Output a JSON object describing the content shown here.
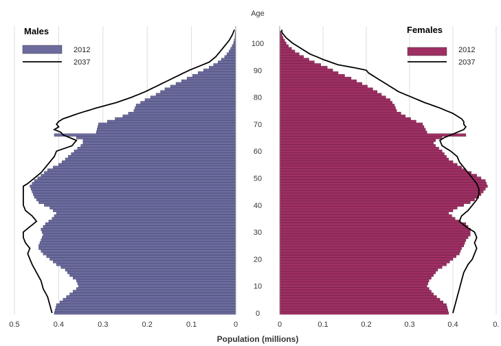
{
  "chart_data": {
    "type": "bar",
    "subtype": "population-pyramid",
    "age_axis_label": "Age",
    "xlabel": "Population (millions)",
    "age_ticks": [
      0,
      10,
      20,
      30,
      40,
      50,
      60,
      70,
      80,
      90,
      100
    ],
    "male_xticks": [
      "0.5",
      "0.4",
      "0.3",
      "0.2",
      "0.1",
      "0"
    ],
    "female_xticks": [
      "0",
      "0.1",
      "0.2",
      "0.3",
      "0.4",
      "0."
    ],
    "xlim": [
      0,
      0.5
    ],
    "grid": true,
    "legend_position": "top-outer",
    "colors": {
      "male_bar": "#6b6b9e",
      "female_bar": "#9e2f63",
      "line_2037": "#000000"
    },
    "panels": [
      {
        "title": "Males",
        "series": [
          {
            "name": "2012",
            "type": "bar",
            "keyframes": [
              [
                0,
                0.41
              ],
              [
                3,
                0.405
              ],
              [
                5,
                0.39
              ],
              [
                7,
                0.375
              ],
              [
                9,
                0.36
              ],
              [
                10,
                0.355
              ],
              [
                12,
                0.36
              ],
              [
                14,
                0.375
              ],
              [
                16,
                0.385
              ],
              [
                18,
                0.405
              ],
              [
                20,
                0.42
              ],
              [
                22,
                0.435
              ],
              [
                24,
                0.445
              ],
              [
                25,
                0.445
              ],
              [
                27,
                0.44
              ],
              [
                29,
                0.435
              ],
              [
                31,
                0.44
              ],
              [
                33,
                0.43
              ],
              [
                35,
                0.415
              ],
              [
                37,
                0.405
              ],
              [
                39,
                0.42
              ],
              [
                41,
                0.445
              ],
              [
                43,
                0.455
              ],
              [
                45,
                0.46
              ],
              [
                47,
                0.465
              ],
              [
                49,
                0.455
              ],
              [
                51,
                0.44
              ],
              [
                53,
                0.425
              ],
              [
                55,
                0.4
              ],
              [
                57,
                0.385
              ],
              [
                60,
                0.365
              ],
              [
                62,
                0.35
              ],
              [
                63,
                0.345
              ],
              [
                64,
                0.345
              ],
              [
                65,
                0.36
              ],
              [
                66,
                0.41
              ],
              [
                67,
                0.315
              ],
              [
                70,
                0.31
              ],
              [
                71,
                0.29
              ],
              [
                73,
                0.255
              ],
              [
                75,
                0.23
              ],
              [
                77,
                0.225
              ],
              [
                79,
                0.205
              ],
              [
                81,
                0.18
              ],
              [
                83,
                0.16
              ],
              [
                85,
                0.135
              ],
              [
                87,
                0.11
              ],
              [
                89,
                0.085
              ],
              [
                91,
                0.06
              ],
              [
                93,
                0.04
              ],
              [
                95,
                0.025
              ],
              [
                97,
                0.015
              ],
              [
                99,
                0.008
              ],
              [
                100,
                0.005
              ],
              [
                102,
                0.002
              ],
              [
                104,
                0.001
              ]
            ]
          },
          {
            "name": "2037",
            "type": "line",
            "keyframes": [
              [
                0,
                0.415
              ],
              [
                3,
                0.42
              ],
              [
                6,
                0.425
              ],
              [
                9,
                0.435
              ],
              [
                12,
                0.44
              ],
              [
                15,
                0.45
              ],
              [
                18,
                0.46
              ],
              [
                20,
                0.465
              ],
              [
                22,
                0.47
              ],
              [
                24,
                0.465
              ],
              [
                26,
                0.475
              ],
              [
                28,
                0.48
              ],
              [
                30,
                0.48
              ],
              [
                32,
                0.465
              ],
              [
                34,
                0.45
              ],
              [
                36,
                0.46
              ],
              [
                38,
                0.475
              ],
              [
                40,
                0.48
              ],
              [
                42,
                0.48
              ],
              [
                44,
                0.48
              ],
              [
                46,
                0.48
              ],
              [
                47,
                0.48
              ],
              [
                48,
                0.47
              ],
              [
                50,
                0.455
              ],
              [
                52,
                0.44
              ],
              [
                54,
                0.43
              ],
              [
                56,
                0.42
              ],
              [
                58,
                0.41
              ],
              [
                60,
                0.405
              ],
              [
                62,
                0.37
              ],
              [
                64,
                0.36
              ],
              [
                65,
                0.375
              ],
              [
                66,
                0.39
              ],
              [
                67,
                0.395
              ],
              [
                68,
                0.41
              ],
              [
                69,
                0.4
              ],
              [
                70,
                0.405
              ],
              [
                71,
                0.4
              ],
              [
                72,
                0.39
              ],
              [
                74,
                0.355
              ],
              [
                76,
                0.315
              ],
              [
                78,
                0.27
              ],
              [
                80,
                0.235
              ],
              [
                82,
                0.205
              ],
              [
                84,
                0.18
              ],
              [
                86,
                0.155
              ],
              [
                88,
                0.13
              ],
              [
                90,
                0.105
              ],
              [
                92,
                0.075
              ],
              [
                93,
                0.06
              ],
              [
                95,
                0.045
              ],
              [
                97,
                0.035
              ],
              [
                99,
                0.025
              ],
              [
                101,
                0.015
              ],
              [
                103,
                0.008
              ],
              [
                105,
                0.003
              ]
            ]
          }
        ]
      },
      {
        "title": "Females",
        "series": [
          {
            "name": "2012",
            "type": "bar",
            "keyframes": [
              [
                0,
                0.39
              ],
              [
                3,
                0.385
              ],
              [
                5,
                0.37
              ],
              [
                7,
                0.355
              ],
              [
                9,
                0.345
              ],
              [
                10,
                0.34
              ],
              [
                12,
                0.345
              ],
              [
                14,
                0.355
              ],
              [
                16,
                0.365
              ],
              [
                18,
                0.385
              ],
              [
                20,
                0.4
              ],
              [
                22,
                0.415
              ],
              [
                24,
                0.42
              ],
              [
                25,
                0.425
              ],
              [
                27,
                0.43
              ],
              [
                29,
                0.44
              ],
              [
                31,
                0.44
              ],
              [
                33,
                0.43
              ],
              [
                35,
                0.405
              ],
              [
                37,
                0.39
              ],
              [
                39,
                0.41
              ],
              [
                41,
                0.44
              ],
              [
                43,
                0.46
              ],
              [
                45,
                0.47
              ],
              [
                47,
                0.48
              ],
              [
                49,
                0.475
              ],
              [
                51,
                0.455
              ],
              [
                53,
                0.43
              ],
              [
                55,
                0.41
              ],
              [
                57,
                0.39
              ],
              [
                60,
                0.375
              ],
              [
                62,
                0.36
              ],
              [
                63,
                0.355
              ],
              [
                64,
                0.36
              ],
              [
                65,
                0.375
              ],
              [
                66,
                0.43
              ],
              [
                67,
                0.34
              ],
              [
                70,
                0.33
              ],
              [
                71,
                0.315
              ],
              [
                73,
                0.29
              ],
              [
                75,
                0.27
              ],
              [
                77,
                0.265
              ],
              [
                79,
                0.255
              ],
              [
                81,
                0.235
              ],
              [
                83,
                0.215
              ],
              [
                85,
                0.19
              ],
              [
                87,
                0.165
              ],
              [
                89,
                0.135
              ],
              [
                91,
                0.11
              ],
              [
                93,
                0.08
              ],
              [
                95,
                0.055
              ],
              [
                97,
                0.035
              ],
              [
                99,
                0.02
              ],
              [
                100,
                0.015
              ],
              [
                102,
                0.008
              ],
              [
                104,
                0.003
              ]
            ]
          },
          {
            "name": "2037",
            "type": "line",
            "keyframes": [
              [
                0,
                0.4
              ],
              [
                3,
                0.405
              ],
              [
                6,
                0.41
              ],
              [
                9,
                0.415
              ],
              [
                12,
                0.42
              ],
              [
                15,
                0.425
              ],
              [
                18,
                0.435
              ],
              [
                20,
                0.445
              ],
              [
                22,
                0.45
              ],
              [
                24,
                0.455
              ],
              [
                26,
                0.45
              ],
              [
                28,
                0.455
              ],
              [
                30,
                0.45
              ],
              [
                32,
                0.43
              ],
              [
                34,
                0.415
              ],
              [
                36,
                0.42
              ],
              [
                38,
                0.435
              ],
              [
                40,
                0.445
              ],
              [
                42,
                0.455
              ],
              [
                44,
                0.46
              ],
              [
                46,
                0.46
              ],
              [
                48,
                0.455
              ],
              [
                50,
                0.445
              ],
              [
                52,
                0.435
              ],
              [
                54,
                0.425
              ],
              [
                56,
                0.415
              ],
              [
                58,
                0.41
              ],
              [
                60,
                0.395
              ],
              [
                62,
                0.375
              ],
              [
                64,
                0.37
              ],
              [
                65,
                0.38
              ],
              [
                66,
                0.395
              ],
              [
                67,
                0.41
              ],
              [
                68,
                0.425
              ],
              [
                69,
                0.43
              ],
              [
                70,
                0.425
              ],
              [
                71,
                0.425
              ],
              [
                72,
                0.42
              ],
              [
                74,
                0.4
              ],
              [
                76,
                0.37
              ],
              [
                78,
                0.335
              ],
              [
                80,
                0.305
              ],
              [
                82,
                0.275
              ],
              [
                84,
                0.255
              ],
              [
                86,
                0.235
              ],
              [
                88,
                0.215
              ],
              [
                89,
                0.205
              ],
              [
                90,
                0.2
              ],
              [
                91,
                0.17
              ],
              [
                92,
                0.135
              ],
              [
                94,
                0.1
              ],
              [
                96,
                0.07
              ],
              [
                98,
                0.05
              ],
              [
                100,
                0.03
              ],
              [
                102,
                0.015
              ],
              [
                104,
                0.005
              ]
            ]
          }
        ]
      }
    ]
  }
}
